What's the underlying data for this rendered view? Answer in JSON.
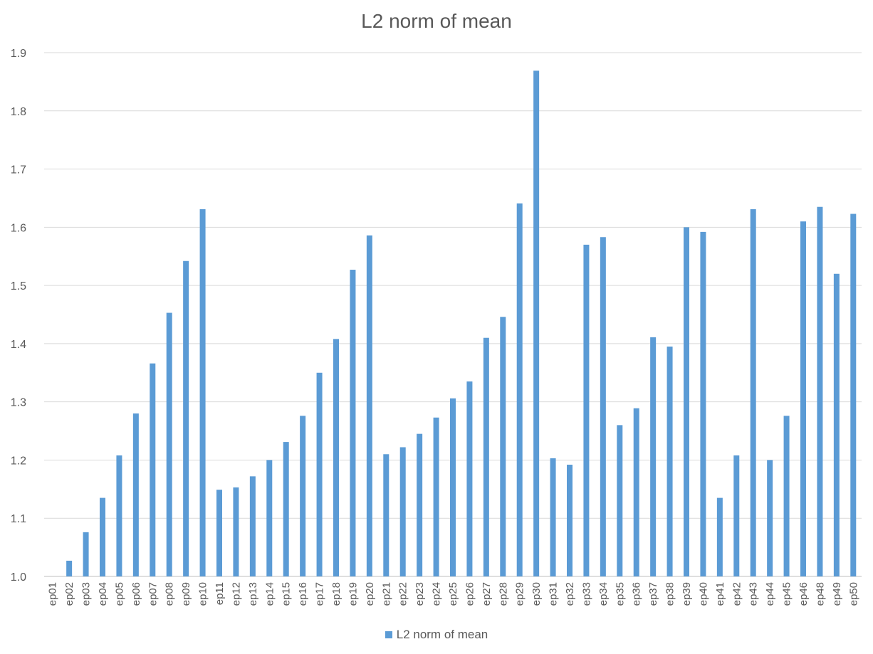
{
  "chart_data": {
    "type": "bar",
    "title": "L2 norm of mean",
    "xlabel": "",
    "ylabel": "",
    "ylim": [
      1.0,
      1.9
    ],
    "yticks": [
      "1.0",
      "1.1",
      "1.2",
      "1.3",
      "1.4",
      "1.5",
      "1.6",
      "1.7",
      "1.8",
      "1.9"
    ],
    "grid": true,
    "legend_position": "bottom",
    "bar_color": "#5B9BD5",
    "categories": [
      "ep01",
      "ep02",
      "ep03",
      "ep04",
      "ep05",
      "ep06",
      "ep07",
      "ep08",
      "ep09",
      "ep10",
      "ep11",
      "ep12",
      "ep13",
      "ep14",
      "ep15",
      "ep16",
      "ep17",
      "ep18",
      "ep19",
      "ep20",
      "ep21",
      "ep22",
      "ep23",
      "ep24",
      "ep25",
      "ep26",
      "ep27",
      "ep28",
      "ep29",
      "ep30",
      "ep31",
      "ep32",
      "ep33",
      "ep34",
      "ep35",
      "ep36",
      "ep37",
      "ep38",
      "ep39",
      "ep40",
      "ep41",
      "ep42",
      "ep43",
      "ep44",
      "ep45",
      "ep46",
      "ep48",
      "ep49",
      "ep50"
    ],
    "series": [
      {
        "name": "L2 norm of mean",
        "values": [
          1.0,
          1.027,
          1.076,
          1.135,
          1.208,
          1.28,
          1.366,
          1.453,
          1.542,
          1.631,
          1.149,
          1.153,
          1.172,
          1.2,
          1.231,
          1.276,
          1.35,
          1.408,
          1.527,
          1.586,
          1.21,
          1.222,
          1.245,
          1.273,
          1.306,
          1.335,
          1.41,
          1.446,
          1.641,
          1.869,
          1.203,
          1.192,
          1.57,
          1.583,
          1.26,
          1.289,
          1.411,
          1.395,
          1.6,
          1.592,
          1.135,
          1.208,
          1.631,
          1.2,
          1.276,
          1.61,
          1.635,
          1.52,
          1.623
        ]
      }
    ]
  }
}
